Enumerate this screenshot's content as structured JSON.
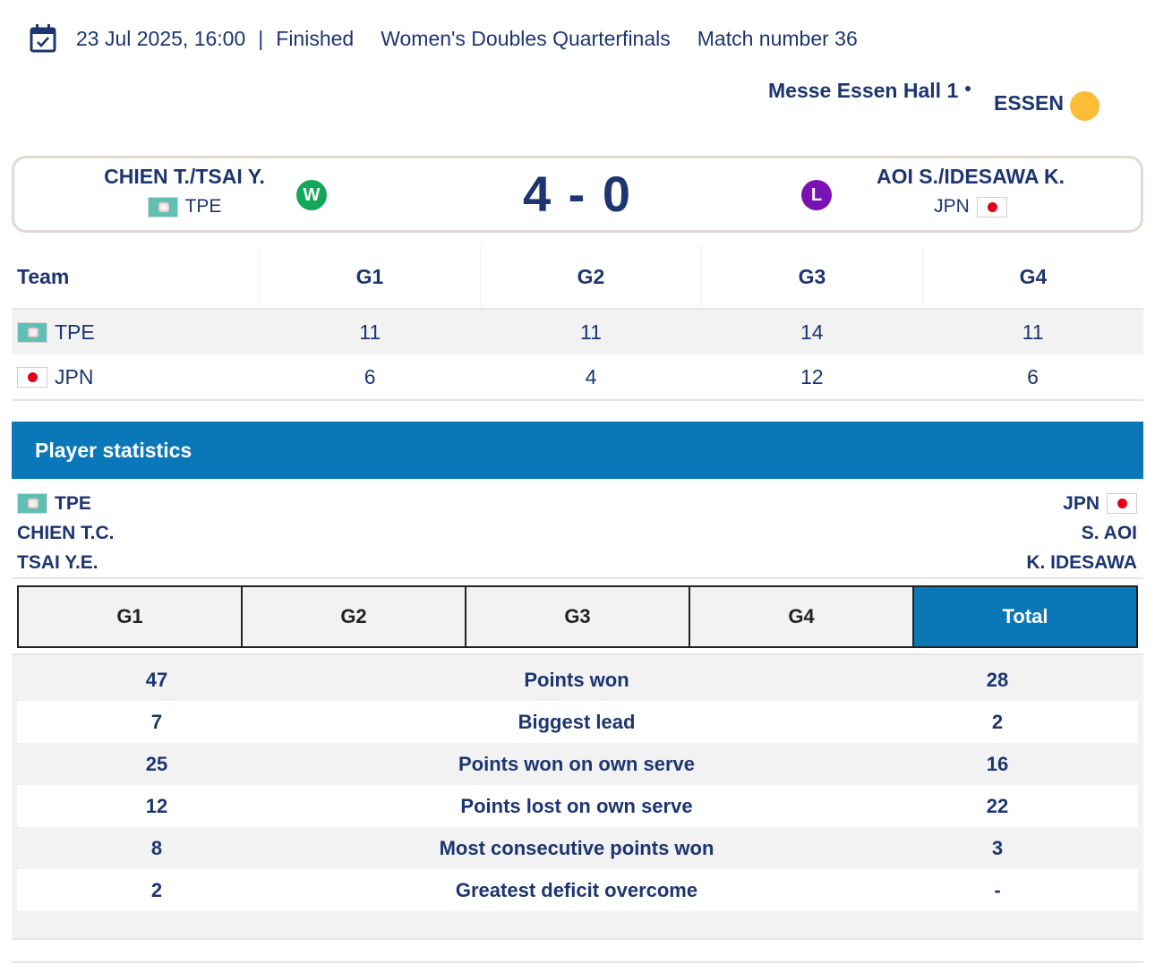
{
  "header": {
    "datetime": "23 Jul 2025, 16:00",
    "separator": "|",
    "status": "Finished",
    "event": "Women's Doubles Quarterfinals",
    "match": "Match number 36"
  },
  "venue": {
    "hall": "Messe Essen Hall 1",
    "city": "ESSEN"
  },
  "match": {
    "home": {
      "name": "CHIEN T./TSAI Y.",
      "code": "TPE",
      "result": "W",
      "result_color": "#11a85a"
    },
    "away": {
      "name": "AOI S./IDESAWA K.",
      "code": "JPN",
      "result": "L",
      "result_color": "#7a11b4"
    },
    "score": "4 - 0"
  },
  "games_table": {
    "headers": [
      "Team",
      "G1",
      "G2",
      "G3",
      "G4"
    ],
    "rows": [
      {
        "team": "TPE",
        "scores": [
          "11",
          "11",
          "14",
          "11"
        ]
      },
      {
        "team": "JPN",
        "scores": [
          "6",
          "4",
          "12",
          "6"
        ]
      }
    ]
  },
  "player_stats": {
    "title": "Player statistics",
    "left": {
      "code": "TPE",
      "players": [
        "CHIEN T.C.",
        "TSAI Y.E."
      ]
    },
    "right": {
      "code": "JPN",
      "players": [
        "S. AOI",
        "K. IDESAWA"
      ]
    },
    "tabs": [
      "G1",
      "G2",
      "G3",
      "G4",
      "Total"
    ],
    "active_tab": "Total",
    "rows": [
      {
        "left": "47",
        "label": "Points won",
        "right": "28"
      },
      {
        "left": "7",
        "label": "Biggest lead",
        "right": "2"
      },
      {
        "left": "25",
        "label": "Points won on own serve",
        "right": "16"
      },
      {
        "left": "12",
        "label": "Points lost on own serve",
        "right": "22"
      },
      {
        "left": "8",
        "label": "Most consecutive points won",
        "right": "3"
      },
      {
        "left": "2",
        "label": "Greatest deficit overcome",
        "right": "-"
      }
    ]
  },
  "colors": {
    "navy": "#1d3570",
    "accent_blue": "#0a78b8",
    "sun": "#fbbd36"
  },
  "icons": {
    "calendar": "calendar-check-icon",
    "weather": "sun-icon"
  }
}
